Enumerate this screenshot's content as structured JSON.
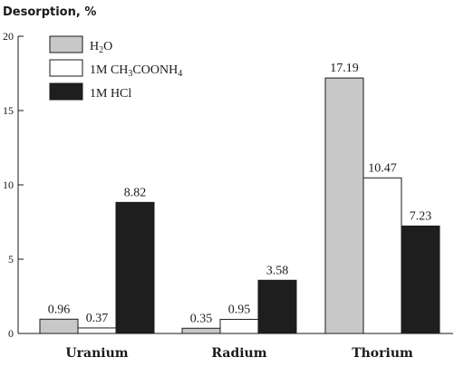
{
  "chart_data": {
    "type": "bar",
    "title": "",
    "ylabel": "Desorption, %",
    "xlabel": "",
    "ylim": [
      0,
      20
    ],
    "yticks": [
      0,
      5,
      10,
      15,
      20
    ],
    "categories": [
      "Uranium",
      "Radium",
      "Thorium"
    ],
    "series": [
      {
        "name": "H2O",
        "color": "#c8c8c8",
        "values": [
          0.96,
          0.35,
          17.19
        ],
        "labels": [
          "0.96",
          "0.35",
          "17.19"
        ]
      },
      {
        "name": "1M CH3COONH4",
        "color": "#ffffff",
        "values": [
          0.37,
          0.95,
          10.47
        ],
        "labels": [
          "0.37",
          "0.95",
          "10.47"
        ]
      },
      {
        "name": "1M HCl",
        "color": "#1e1e1e",
        "values": [
          8.82,
          3.58,
          7.23
        ],
        "labels": [
          "8.82",
          "3.58",
          "7.23"
        ]
      }
    ],
    "legend_position": "top-left",
    "grid": false
  }
}
